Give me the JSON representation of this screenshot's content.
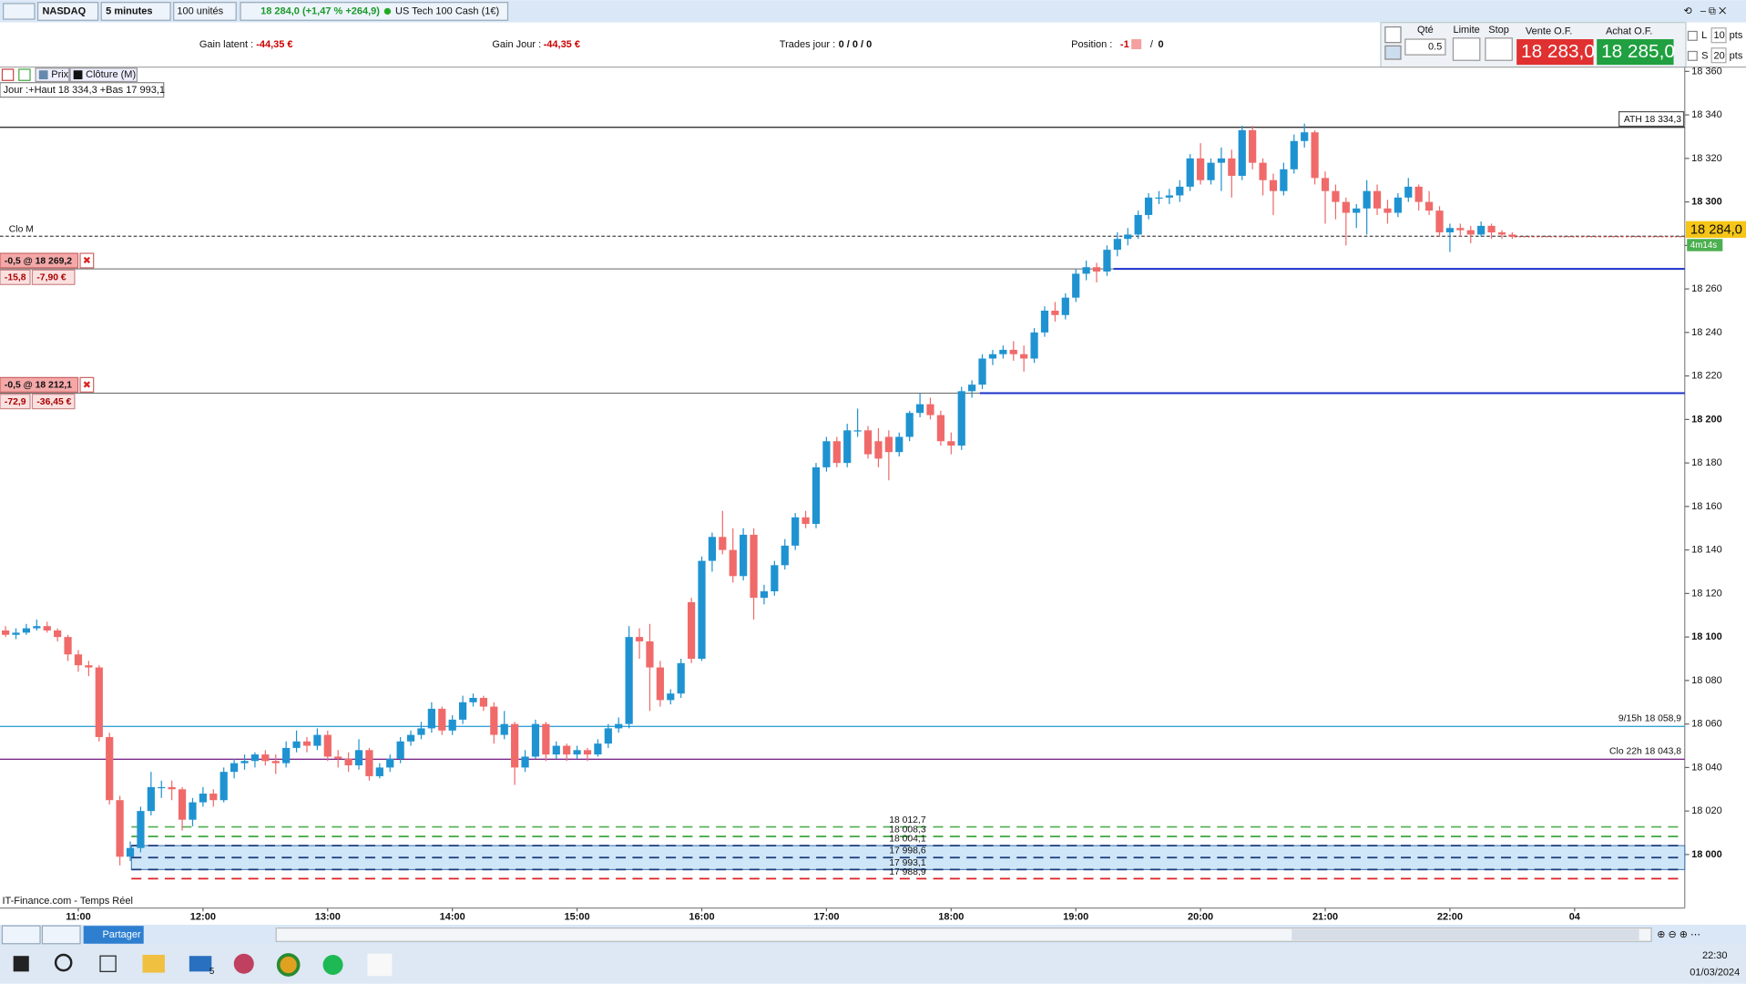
{
  "toolbar": {
    "instrument": "NASDAQ",
    "interval": "5 minutes",
    "quantity": "100 unités",
    "quote": "18 284,0 (+1,47 % +264,9)",
    "name": "US Tech 100 Cash (1€)"
  },
  "info_bar": {
    "gain_latent_label": "Gain latent :",
    "gain_latent": "-44,35 €",
    "gain_jour_label": "Gain Jour :",
    "gain_jour": "-44,35 €",
    "trades_label": "Trades jour :",
    "trades": "0 / 0 / 0",
    "position_label": "Position :",
    "position": "-1",
    "position_2": "0"
  },
  "order_panel": {
    "qty_label": "Qté",
    "qty": "0.5",
    "limit_label": "Limite",
    "stop_label": "Stop",
    "sell_label": "Vente O.F.",
    "sell_price": "18 283,0",
    "buy_label": "Achat O.F.",
    "buy_price": "18 285,0",
    "l_label": "L",
    "l_value": "10",
    "s_label": "S",
    "s_value": "20",
    "unit": "pts"
  },
  "chart_data": {
    "type": "candlestick",
    "legend": [
      "Prix",
      "Clôture (M)"
    ],
    "day_range": "Jour :+Haut 18 334,3 +Bas 17 993,1",
    "source": "IT-Finance.com - Temps Réel",
    "up_color": "#1f93d1",
    "down_color": "#f06a6a",
    "xlim": [
      -0.536,
      161.6
    ],
    "xticks": [
      {
        "value": 7,
        "label": "11:00"
      },
      {
        "value": 19,
        "label": "12:00"
      },
      {
        "value": 31,
        "label": "13:00"
      },
      {
        "value": 43,
        "label": "14:00"
      },
      {
        "value": 55,
        "label": "15:00"
      },
      {
        "value": 67,
        "label": "16:00"
      },
      {
        "value": 79,
        "label": "17:00"
      },
      {
        "value": 91,
        "label": "18:00"
      },
      {
        "value": 103,
        "label": "19:00"
      },
      {
        "value": 115,
        "label": "20:00"
      },
      {
        "value": 127,
        "label": "21:00"
      },
      {
        "value": 139,
        "label": "22:00"
      },
      {
        "value": 151,
        "label": "04"
      }
    ],
    "ylim": [
      17975.4,
      18362
    ],
    "yticks": [
      {
        "value": 18000,
        "label": "18 000"
      },
      {
        "value": 18020,
        "label": "18 020"
      },
      {
        "value": 18040,
        "label": "18 040"
      },
      {
        "value": 18060,
        "label": "18 060"
      },
      {
        "value": 18080,
        "label": "18 080"
      },
      {
        "value": 18100,
        "label": "18 100"
      },
      {
        "value": 18120,
        "label": "18 120"
      },
      {
        "value": 18140,
        "label": "18 140"
      },
      {
        "value": 18160,
        "label": "18 160"
      },
      {
        "value": 18180,
        "label": "18 180"
      },
      {
        "value": 18200,
        "label": "18 200"
      },
      {
        "value": 18220,
        "label": "18 220"
      },
      {
        "value": 18240,
        "label": "18 240"
      },
      {
        "value": 18260,
        "label": "18 260"
      },
      {
        "value": 18280,
        "label": "18 280"
      },
      {
        "value": 18300,
        "label": "18 300"
      },
      {
        "value": 18320,
        "label": "18 320"
      },
      {
        "value": 18340,
        "label": "18 340"
      },
      {
        "value": 18360,
        "label": "18 360"
      }
    ],
    "current": {
      "value": 18284.0,
      "label": "18 284,0",
      "timer": "4m14s"
    },
    "levels": [
      {
        "value": 18334.3,
        "label": "ATH 18 334,3",
        "color": "#333333",
        "dashed": false,
        "side": "right",
        "boxed": true
      },
      {
        "value": 18284.2,
        "label": "Clo M",
        "color": "#555555",
        "dashed": true,
        "side": "left",
        "boxed": false
      },
      {
        "value": 18058.9,
        "label": "9/15h 18 058,9",
        "color": "#3aa0d8",
        "dashed": false,
        "side": "right",
        "boxed": false
      },
      {
        "value": 18043.8,
        "label": "Clo 22h 18 043,8",
        "color": "#7b2a8a",
        "dashed": false,
        "side": "right",
        "boxed": false
      }
    ],
    "orders": [
      {
        "value": 18269.2,
        "label": "-0,5 @ 18 269,2",
        "points": "-15,8",
        "pnl": "-7,90 €"
      },
      {
        "value": 18212.1,
        "label": "-0,5 @ 18 212,1",
        "points": "-72,9",
        "pnl": "-36,45 €"
      }
    ],
    "zone_levels": [
      {
        "value": 18012.7,
        "label": "18 012,7",
        "color": "#4caf50"
      },
      {
        "value": 18008.3,
        "label": "18 008,3",
        "color": "#2e9e2e"
      },
      {
        "value": 18004.1,
        "label": "18 004,1",
        "color": "#1a3a7a"
      },
      {
        "value": 17998.6,
        "label": "17 998,6",
        "color": "#1a3a7a"
      },
      {
        "value": 17993.1,
        "label": "17 993,1",
        "color": "#1a3a7a"
      },
      {
        "value": 17988.9,
        "label": "17 988,9",
        "color": "#e02020"
      }
    ],
    "candles": [
      [
        18103,
        18105,
        18100,
        18101
      ],
      [
        18101,
        18104,
        18099,
        18102
      ],
      [
        18102,
        18106,
        18101,
        18104
      ],
      [
        18104,
        18108,
        18103,
        18105
      ],
      [
        18105,
        18107,
        18102,
        18103
      ],
      [
        18103,
        18104,
        18098,
        18100
      ],
      [
        18100,
        18101,
        18089,
        18092
      ],
      [
        18092,
        18094,
        18084,
        18087
      ],
      [
        18087,
        18089,
        18082,
        18086
      ],
      [
        18086,
        18087,
        18052,
        18054
      ],
      [
        18054,
        18056,
        18023,
        18025
      ],
      [
        18025,
        18027,
        17995,
        17999
      ],
      [
        17999,
        18006,
        17997,
        18003
      ],
      [
        18003,
        18022,
        18001,
        18020
      ],
      [
        18020,
        18038,
        18018,
        18031
      ],
      [
        18031,
        18034,
        18026,
        18031
      ],
      [
        18031,
        18034,
        18025,
        18030
      ],
      [
        18030,
        18031,
        18011,
        18016
      ],
      [
        18016,
        18026,
        18013,
        18024
      ],
      [
        18024,
        18031,
        18022,
        18028
      ],
      [
        18028,
        18030,
        18022,
        18025
      ],
      [
        18025,
        18040,
        18024,
        18038
      ],
      [
        18038,
        18044,
        18035,
        18042
      ],
      [
        18042,
        18046,
        18039,
        18043
      ],
      [
        18043,
        18047,
        18040,
        18046
      ],
      [
        18046,
        18048,
        18041,
        18043
      ],
      [
        18043,
        18046,
        18037,
        18042
      ],
      [
        18042,
        18052,
        18040,
        18049
      ],
      [
        18049,
        18057,
        18047,
        18052
      ],
      [
        18052,
        18054,
        18047,
        18050
      ],
      [
        18050,
        18058,
        18048,
        18055
      ],
      [
        18055,
        18057,
        18043,
        18045
      ],
      [
        18045,
        18048,
        18040,
        18044
      ],
      [
        18044,
        18047,
        18038,
        18041
      ],
      [
        18041,
        18053,
        18039,
        18048
      ],
      [
        18048,
        18049,
        18034,
        18036
      ],
      [
        18036,
        18042,
        18035,
        18040
      ],
      [
        18040,
        18046,
        18038,
        18044
      ],
      [
        18044,
        18054,
        18042,
        18052
      ],
      [
        18052,
        18057,
        18050,
        18055
      ],
      [
        18055,
        18061,
        18053,
        18058
      ],
      [
        18058,
        18070,
        18056,
        18067
      ],
      [
        18067,
        18068,
        18055,
        18057
      ],
      [
        18057,
        18064,
        18055,
        18062
      ],
      [
        18062,
        18073,
        18060,
        18070
      ],
      [
        18070,
        18074,
        18068,
        18072
      ],
      [
        18072,
        18073,
        18066,
        18068
      ],
      [
        18068,
        18070,
        18051,
        18055
      ],
      [
        18055,
        18066,
        18053,
        18060
      ],
      [
        18060,
        18061,
        18032,
        18040
      ],
      [
        18040,
        18048,
        18038,
        18045
      ],
      [
        18045,
        18062,
        18044,
        18060
      ],
      [
        18060,
        18061,
        18043,
        18046
      ],
      [
        18046,
        18052,
        18044,
        18050
      ],
      [
        18050,
        18051,
        18043,
        18046
      ],
      [
        18046,
        18050,
        18044,
        18048
      ],
      [
        18048,
        18049,
        18043,
        18046
      ],
      [
        18046,
        18053,
        18045,
        18051
      ],
      [
        18051,
        18060,
        18049,
        18058
      ],
      [
        18058,
        18063,
        18056,
        18060
      ],
      [
        18060,
        18105,
        18058,
        18100
      ],
      [
        18100,
        18104,
        18090,
        18098
      ],
      [
        18098,
        18106,
        18066,
        18086
      ],
      [
        18086,
        18089,
        18068,
        18071
      ],
      [
        18071,
        18076,
        18069,
        18074
      ],
      [
        18074,
        18090,
        18072,
        18088
      ],
      [
        18116,
        18118,
        18088,
        18090
      ],
      [
        18090,
        18137,
        18089,
        18135
      ],
      [
        18135,
        18148,
        18130,
        18146
      ],
      [
        18146,
        18158,
        18138,
        18140
      ],
      [
        18140,
        18150,
        18125,
        18128
      ],
      [
        18128,
        18150,
        18126,
        18147
      ],
      [
        18147,
        18150,
        18108,
        18118
      ],
      [
        18118,
        18124,
        18115,
        18121
      ],
      [
        18121,
        18135,
        18119,
        18133
      ],
      [
        18133,
        18145,
        18131,
        18142
      ],
      [
        18142,
        18157,
        18140,
        18155
      ],
      [
        18155,
        18158,
        18150,
        18152
      ],
      [
        18152,
        18180,
        18150,
        18178
      ],
      [
        18178,
        18192,
        18176,
        18190
      ],
      [
        18190,
        18192,
        18178,
        18180
      ],
      [
        18180,
        18198,
        18178,
        18195
      ],
      [
        18195,
        18205,
        18192,
        18195
      ],
      [
        18195,
        18197,
        18182,
        18184
      ],
      [
        18190,
        18196,
        18178,
        18182
      ],
      [
        18192,
        18195,
        18172,
        18185
      ],
      [
        18185,
        18194,
        18183,
        18192
      ],
      [
        18192,
        18204,
        18190,
        18203
      ],
      [
        18203,
        18212,
        18201,
        18207
      ],
      [
        18207,
        18210,
        18200,
        18202
      ],
      [
        18202,
        18204,
        18188,
        18190
      ],
      [
        18190,
        18194,
        18184,
        18188
      ],
      [
        18188,
        18215,
        18186,
        18213
      ],
      [
        18213,
        18218,
        18210,
        18216
      ],
      [
        18216,
        18230,
        18214,
        18228
      ],
      [
        18228,
        18232,
        18225,
        18230
      ],
      [
        18230,
        18234,
        18228,
        18232
      ],
      [
        18232,
        18236,
        18227,
        18230
      ],
      [
        18230,
        18234,
        18222,
        18228
      ],
      [
        18228,
        18242,
        18226,
        18240
      ],
      [
        18240,
        18252,
        18238,
        18250
      ],
      [
        18250,
        18254,
        18245,
        18248
      ],
      [
        18248,
        18258,
        18246,
        18256
      ],
      [
        18256,
        18269,
        18254,
        18267
      ],
      [
        18267,
        18273,
        18264,
        18270
      ],
      [
        18270,
        18272,
        18263,
        18268
      ],
      [
        18268,
        18280,
        18266,
        18278
      ],
      [
        18278,
        18286,
        18275,
        18283
      ],
      [
        18283,
        18288,
        18280,
        18285
      ],
      [
        18285,
        18296,
        18283,
        18294
      ],
      [
        18294,
        18304,
        18292,
        18302
      ],
      [
        18302,
        18305,
        18299,
        18302
      ],
      [
        18302,
        18306,
        18299,
        18303
      ],
      [
        18303,
        18310,
        18300,
        18307
      ],
      [
        18307,
        18322,
        18305,
        18320
      ],
      [
        18320,
        18327,
        18308,
        18310
      ],
      [
        18310,
        18320,
        18308,
        18318
      ],
      [
        18318,
        18325,
        18305,
        18320
      ],
      [
        18320,
        18324,
        18302,
        18312
      ],
      [
        18312,
        18335,
        18310,
        18333
      ],
      [
        18333,
        18335,
        18315,
        18318
      ],
      [
        18318,
        18320,
        18303,
        18310
      ],
      [
        18310,
        18313,
        18294,
        18305
      ],
      [
        18305,
        18318,
        18303,
        18315
      ],
      [
        18315,
        18331,
        18313,
        18328
      ],
      [
        18328,
        18336,
        18325,
        18332
      ],
      [
        18332,
        18333,
        18308,
        18311
      ],
      [
        18311,
        18314,
        18290,
        18305
      ],
      [
        18305,
        18308,
        18292,
        18300
      ],
      [
        18300,
        18302,
        18280,
        18295
      ],
      [
        18295,
        18299,
        18288,
        18297
      ],
      [
        18297,
        18310,
        18285,
        18305
      ],
      [
        18305,
        18308,
        18294,
        18297
      ],
      [
        18297,
        18301,
        18290,
        18295
      ],
      [
        18295,
        18304,
        18293,
        18302
      ],
      [
        18302,
        18311,
        18300,
        18307
      ],
      [
        18307,
        18308,
        18296,
        18300
      ],
      [
        18300,
        18305,
        18294,
        18296
      ],
      [
        18296,
        18298,
        18284,
        18286
      ],
      [
        18286,
        18290,
        18277,
        18288
      ],
      [
        18288,
        18290,
        18284,
        18287
      ],
      [
        18287,
        18289,
        18281,
        18285
      ],
      [
        18285,
        18291,
        18284,
        18289
      ],
      [
        18289,
        18290,
        18283,
        18286
      ],
      [
        18286,
        18287,
        18283,
        18285
      ],
      [
        18285,
        18286,
        18283,
        18284
      ]
    ]
  },
  "bottom_bar": {
    "share": "Partager"
  },
  "taskbar": {
    "time": "22:30",
    "date": "01/03/2024",
    "mail_badge": "5"
  }
}
